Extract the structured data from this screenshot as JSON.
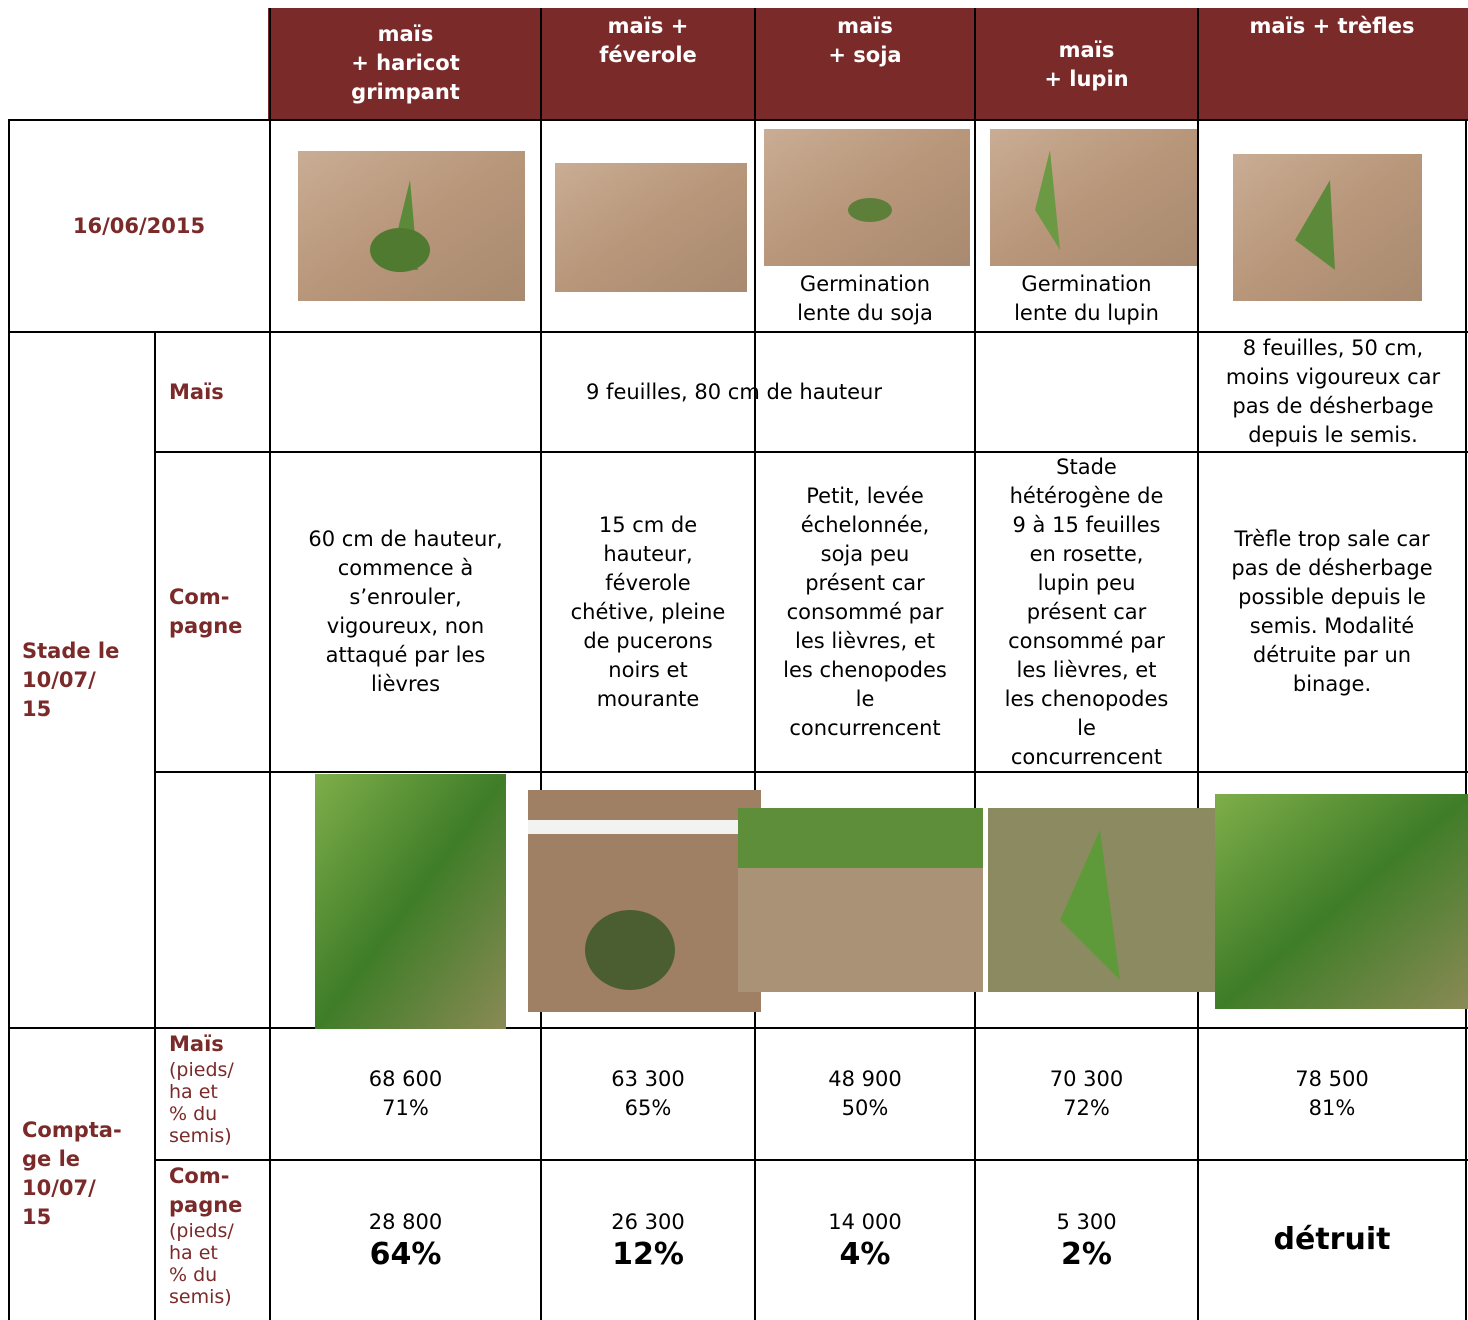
{
  "header": {
    "columns": [
      [
        "maïs",
        "+ haricot",
        "grimpant"
      ],
      [
        "maïs +",
        "féverole"
      ],
      [
        "maïs",
        "+ soja"
      ],
      [
        "maïs",
        "+ lupin"
      ],
      [
        "maïs + trèfles"
      ]
    ]
  },
  "date_row": {
    "label": "16/06/2015",
    "captions": {
      "soja": [
        "Germination",
        "lente du soja"
      ],
      "lupin": [
        "Germination",
        "lente du lupin"
      ]
    }
  },
  "stade": {
    "label": [
      "Stade le",
      "10/07/",
      "15"
    ],
    "mais": {
      "label": "Maïs",
      "common": "9 feuilles, 80 cm de hauteur",
      "trefles": [
        "8 feuilles, 50 cm,",
        "moins vigoureux car",
        "pas de désherbage",
        "depuis le semis."
      ]
    },
    "compagne": {
      "label": [
        "Com-",
        "pagne"
      ],
      "cells": [
        [
          "60 cm de hauteur,",
          "commence à",
          "s’enrouler,",
          "vigoureux, non",
          "attaqué par les",
          "lièvres"
        ],
        [
          "15 cm  de",
          "hauteur,",
          "féverole",
          "chétive, pleine",
          "de pucerons",
          "noirs et",
          "mourante"
        ],
        [
          "Petit, levée",
          "échelonnée,",
          "soja peu",
          "présent car",
          "consommé par",
          "les lièvres, et",
          "les chenopodes",
          "le",
          "concurrencent"
        ],
        [
          "Stade",
          "hétérogène de",
          "9 à 15 feuilles",
          "en rosette,",
          "lupin peu",
          "présent car",
          "consommé par",
          "les lièvres, et",
          "les chenopodes",
          "le",
          "concurrencent"
        ],
        [
          "Trèfle trop sale car",
          "pas de désherbage",
          "possible depuis le",
          "semis. Modalité",
          "détruite par un",
          "binage."
        ]
      ]
    }
  },
  "comptage": {
    "label": [
      "Compta-",
      "ge le",
      "10/07/",
      "15"
    ],
    "mais": {
      "label": "Maïs",
      "unit": [
        "(pieds/",
        "ha et",
        "% du",
        "semis)"
      ],
      "cells": [
        [
          "68 600",
          "71%"
        ],
        [
          "63 300",
          "65%"
        ],
        [
          "48 900",
          "50%"
        ],
        [
          "70 300",
          "72%"
        ],
        [
          "78 500",
          "81%"
        ]
      ]
    },
    "compagne": {
      "label": [
        "Com-",
        "pagne"
      ],
      "unit": [
        "(pieds/",
        "ha et",
        "% du",
        "semis)"
      ],
      "cells": [
        [
          "28 800",
          "64%"
        ],
        [
          "26 300",
          "12%"
        ],
        [
          "14 000",
          "4%"
        ],
        [
          "5 300",
          "2%"
        ]
      ],
      "trefles": "détruit"
    }
  }
}
